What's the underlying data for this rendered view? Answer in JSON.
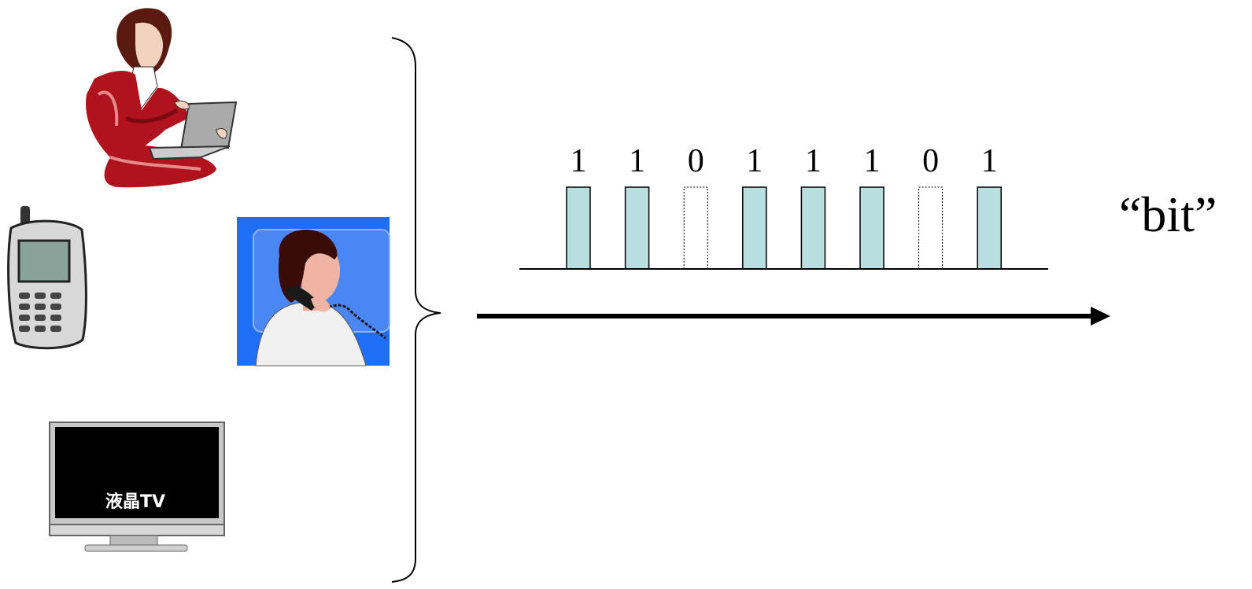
{
  "devices": {
    "laptop_user": {
      "icon": "woman-laptop-icon"
    },
    "mobile_phone": {
      "icon": "mobile-phone-icon"
    },
    "telephone_user": {
      "icon": "woman-telephone-icon"
    },
    "lcd_tv": {
      "icon": "lcd-tv-icon",
      "screen_label": "液晶TV"
    }
  },
  "bits": {
    "sequence": [
      1,
      1,
      0,
      1,
      1,
      1,
      0,
      1
    ],
    "labels": [
      "1",
      "1",
      "0",
      "1",
      "1",
      "1",
      "0",
      "1"
    ],
    "on_fill": "#b8dedf",
    "off_stroke": "#000000"
  },
  "caption": "“bit”",
  "colors": {
    "tv_screen": "#000000",
    "phone_scene_bg": "#1e6ff5",
    "suit_red": "#b0121e"
  }
}
